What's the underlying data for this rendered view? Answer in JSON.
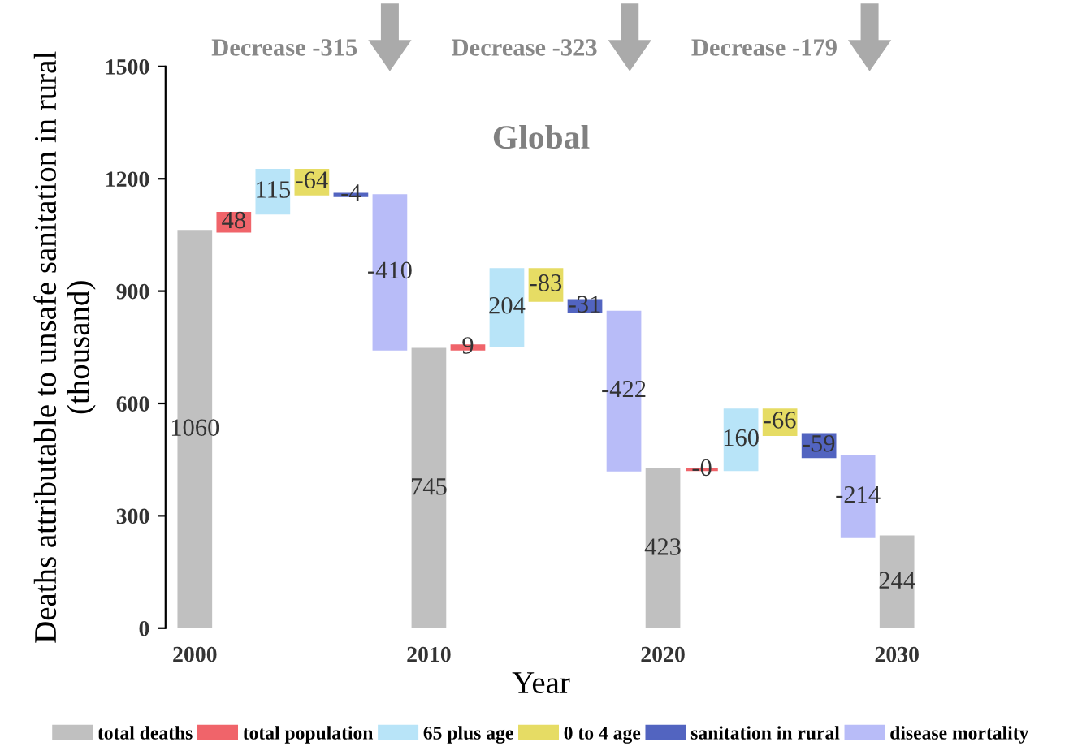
{
  "chart_data": {
    "type": "bar",
    "title": "Global",
    "xlabel": "Year",
    "ylabel": "Deaths attributable to unsafe sanitation in rural\n(thousand)",
    "categories": [
      "2000",
      null,
      null,
      null,
      null,
      null,
      "2010",
      null,
      null,
      null,
      null,
      null,
      "2020",
      null,
      null,
      null,
      null,
      null,
      "2030"
    ],
    "series": [
      {
        "name": "total deaths",
        "color": "#c0c0c0",
        "base": [
          0,
          null,
          null,
          null,
          null,
          null,
          0,
          null,
          null,
          null,
          null,
          null,
          0,
          null,
          null,
          null,
          null,
          null,
          0
        ],
        "values": [
          1060,
          null,
          null,
          null,
          null,
          null,
          745,
          null,
          null,
          null,
          null,
          null,
          423,
          null,
          null,
          null,
          null,
          null,
          244
        ],
        "value_labels": [
          "1060",
          null,
          null,
          null,
          null,
          null,
          "745",
          null,
          null,
          null,
          null,
          null,
          "423",
          null,
          null,
          null,
          null,
          null,
          "244"
        ]
      },
      {
        "name": "total population",
        "color": "#f0646a",
        "base": [
          null,
          1060,
          null,
          null,
          null,
          null,
          null,
          745,
          null,
          null,
          null,
          null,
          null,
          423,
          null,
          null,
          null,
          null,
          null
        ],
        "values": [
          null,
          48,
          null,
          null,
          null,
          null,
          null,
          9,
          null,
          null,
          null,
          null,
          null,
          0,
          null,
          null,
          null,
          null,
          null
        ],
        "value_labels": [
          null,
          "48",
          null,
          null,
          null,
          null,
          null,
          "9",
          null,
          null,
          null,
          null,
          null,
          "-0",
          null,
          null,
          null,
          null,
          null
        ]
      },
      {
        "name": "65 plus age",
        "color": "#b8e4f8",
        "base": [
          null,
          null,
          1108,
          null,
          null,
          null,
          null,
          null,
          754,
          null,
          null,
          null,
          null,
          null,
          423,
          null,
          null,
          null,
          null
        ],
        "values": [
          null,
          null,
          115,
          null,
          null,
          null,
          null,
          null,
          204,
          null,
          null,
          null,
          null,
          null,
          160,
          null,
          null,
          null,
          null
        ],
        "value_labels": [
          null,
          null,
          "115",
          null,
          null,
          null,
          null,
          null,
          "204",
          null,
          null,
          null,
          null,
          null,
          "160",
          null,
          null,
          null,
          null
        ]
      },
      {
        "name": "0 to 4 age",
        "color": "#e6dc64",
        "base": [
          null,
          null,
          null,
          1223,
          null,
          null,
          null,
          null,
          null,
          958,
          null,
          null,
          null,
          null,
          null,
          583,
          null,
          null,
          null
        ],
        "values": [
          null,
          null,
          null,
          -64,
          null,
          null,
          null,
          null,
          null,
          -83,
          null,
          null,
          null,
          null,
          null,
          -66,
          null,
          null,
          null
        ],
        "value_labels": [
          null,
          null,
          null,
          "-64",
          null,
          null,
          null,
          null,
          null,
          "-83",
          null,
          null,
          null,
          null,
          null,
          "-66",
          null,
          null,
          null
        ]
      },
      {
        "name": "sanitation in rural",
        "color": "#5264c0",
        "base": [
          null,
          null,
          null,
          null,
          1159,
          null,
          null,
          null,
          null,
          null,
          875,
          null,
          null,
          null,
          null,
          null,
          517,
          null,
          null
        ],
        "values": [
          null,
          null,
          null,
          null,
          -4,
          null,
          null,
          null,
          null,
          null,
          -31,
          null,
          null,
          null,
          null,
          null,
          -59,
          null,
          null
        ],
        "value_labels": [
          null,
          null,
          null,
          null,
          "-4",
          null,
          null,
          null,
          null,
          null,
          "-31",
          null,
          null,
          null,
          null,
          null,
          "-59",
          null,
          null
        ]
      },
      {
        "name": "disease mortality",
        "color": "#b8bcf8",
        "base": [
          null,
          null,
          null,
          null,
          null,
          1155,
          null,
          null,
          null,
          null,
          null,
          844,
          null,
          null,
          null,
          null,
          null,
          458,
          null
        ],
        "values": [
          null,
          null,
          null,
          null,
          null,
          -410,
          null,
          null,
          null,
          null,
          null,
          -422,
          null,
          null,
          null,
          null,
          null,
          -214,
          null
        ],
        "value_labels": [
          null,
          null,
          null,
          null,
          null,
          "-410",
          null,
          null,
          null,
          null,
          null,
          "-422",
          null,
          null,
          null,
          null,
          null,
          "-214",
          null
        ]
      }
    ],
    "ylim": [
      0,
      1500
    ],
    "yticks": [
      0,
      300,
      600,
      900,
      1200,
      1500
    ],
    "grid": false,
    "legend": "bottom",
    "annotations": [
      "Decrease -315",
      "Decrease -323",
      "Decrease -179"
    ]
  }
}
